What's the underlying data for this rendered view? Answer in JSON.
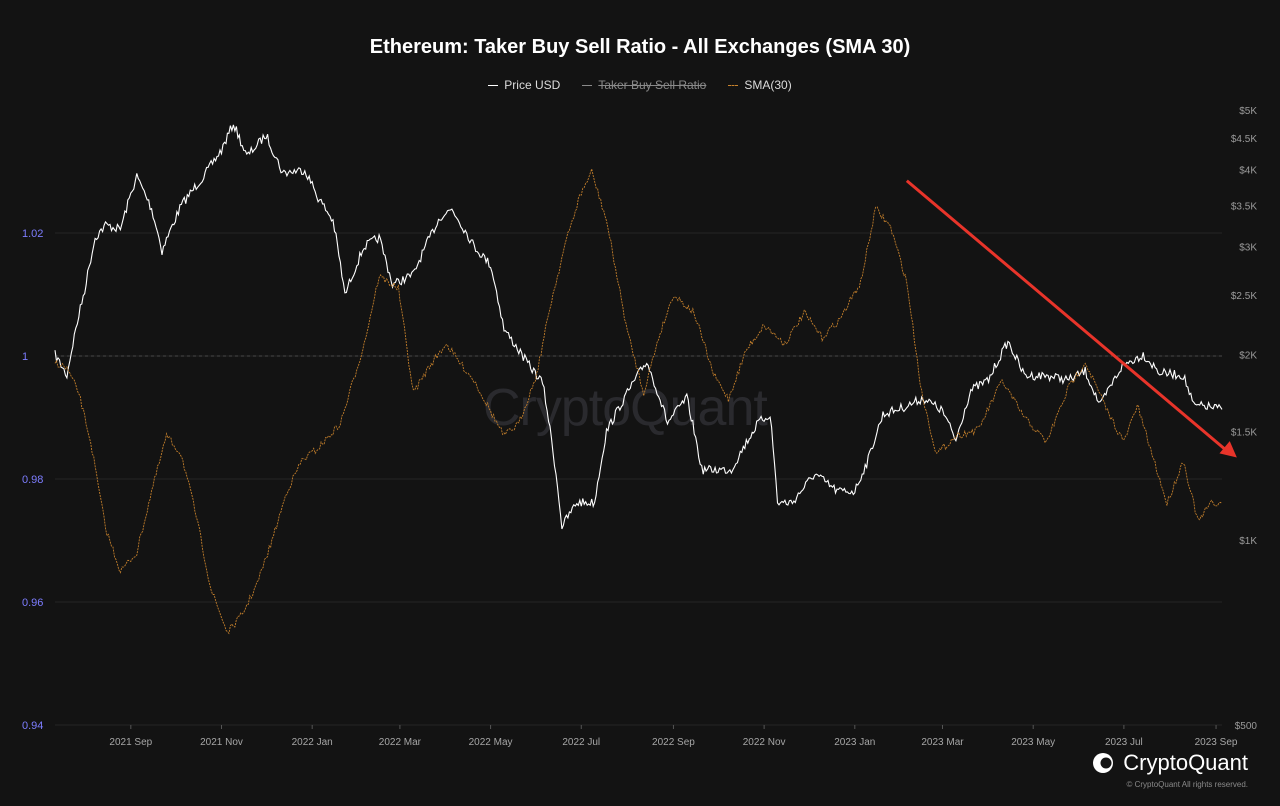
{
  "page": {
    "title": "Ethereum: Taker Buy Sell Ratio - All Exchanges (SMA 30)",
    "watermark": "CryptoQuant",
    "brand": "CryptoQuant",
    "copyright": "© CryptoQuant All rights reserved."
  },
  "legend": [
    {
      "label": "Price USD",
      "color": "#ffffff",
      "hidden": false
    },
    {
      "label": "Taker Buy Sell Ratio",
      "color": "#8a8a8a",
      "hidden": true
    },
    {
      "label": "SMA(30)",
      "color": "#c9832c",
      "hidden": false
    }
  ],
  "chart_data": {
    "type": "line",
    "title": "Ethereum: Taker Buy Sell Ratio - All Exchanges (SMA 30)",
    "xlabel": "",
    "ylabel": "",
    "x_ticks": [
      "2021 Sep",
      "2021 Nov",
      "2022 Jan",
      "2022 Mar",
      "2022 May",
      "2022 Jul",
      "2022 Sep",
      "2022 Nov",
      "2023 Jan",
      "2023 Mar",
      "2023 May",
      "2023 Jul",
      "2023 Sep"
    ],
    "x_range": [
      "2021-07-12",
      "2023-09-05"
    ],
    "y_left": {
      "ticks": [
        "1.02",
        "1",
        "0.98",
        "0.96",
        "0.94"
      ],
      "values": [
        1.02,
        1.0,
        0.98,
        0.96,
        0.94
      ],
      "range": [
        0.94,
        1.04
      ],
      "reference_line": 1.0
    },
    "y_right": {
      "ticks": [
        "$5K",
        "$4.5K",
        "$4K",
        "$3.5K",
        "$3K",
        "$2.5K",
        "$2K",
        "$1.5K",
        "$1K",
        "$500"
      ],
      "values": [
        5000,
        4500,
        4000,
        3500,
        3000,
        2500,
        2000,
        1500,
        1000,
        500
      ],
      "range": [
        500,
        5000
      ],
      "scale": "log"
    },
    "series": [
      {
        "name": "Price USD",
        "axis": "right",
        "color": "#ffffff",
        "points": [
          [
            "2021-07-12",
            2000
          ],
          [
            "2021-07-20",
            1850
          ],
          [
            "2021-08-01",
            2550
          ],
          [
            "2021-08-08",
            3100
          ],
          [
            "2021-08-15",
            3250
          ],
          [
            "2021-08-25",
            3200
          ],
          [
            "2021-09-05",
            3900
          ],
          [
            "2021-09-15",
            3450
          ],
          [
            "2021-09-22",
            2950
          ],
          [
            "2021-10-05",
            3500
          ],
          [
            "2021-10-20",
            3900
          ],
          [
            "2021-11-01",
            4300
          ],
          [
            "2021-11-09",
            4750
          ],
          [
            "2021-11-18",
            4200
          ],
          [
            "2021-12-01",
            4550
          ],
          [
            "2021-12-12",
            3950
          ],
          [
            "2021-12-27",
            4000
          ],
          [
            "2022-01-05",
            3600
          ],
          [
            "2022-01-15",
            3300
          ],
          [
            "2022-01-23",
            2500
          ],
          [
            "2022-02-05",
            3000
          ],
          [
            "2022-02-15",
            3100
          ],
          [
            "2022-02-24",
            2600
          ],
          [
            "2022-03-10",
            2700
          ],
          [
            "2022-03-28",
            3350
          ],
          [
            "2022-04-05",
            3450
          ],
          [
            "2022-04-20",
            3000
          ],
          [
            "2022-05-01",
            2800
          ],
          [
            "2022-05-10",
            2200
          ],
          [
            "2022-05-25",
            1950
          ],
          [
            "2022-06-05",
            1800
          ],
          [
            "2022-06-18",
            1050
          ],
          [
            "2022-06-28",
            1150
          ],
          [
            "2022-07-10",
            1150
          ],
          [
            "2022-07-18",
            1500
          ],
          [
            "2022-07-30",
            1700
          ],
          [
            "2022-08-14",
            1950
          ],
          [
            "2022-08-28",
            1550
          ],
          [
            "2022-09-10",
            1700
          ],
          [
            "2022-09-20",
            1300
          ],
          [
            "2022-10-10",
            1300
          ],
          [
            "2022-10-28",
            1550
          ],
          [
            "2022-11-05",
            1600
          ],
          [
            "2022-11-10",
            1150
          ],
          [
            "2022-11-20",
            1150
          ],
          [
            "2022-12-05",
            1280
          ],
          [
            "2022-12-20",
            1200
          ],
          [
            "2023-01-01",
            1200
          ],
          [
            "2023-01-10",
            1350
          ],
          [
            "2023-01-20",
            1600
          ],
          [
            "2023-02-05",
            1650
          ],
          [
            "2023-02-16",
            1700
          ],
          [
            "2023-03-01",
            1620
          ],
          [
            "2023-03-10",
            1450
          ],
          [
            "2023-03-20",
            1750
          ],
          [
            "2023-04-01",
            1820
          ],
          [
            "2023-04-14",
            2100
          ],
          [
            "2023-04-25",
            1850
          ],
          [
            "2023-05-10",
            1850
          ],
          [
            "2023-05-25",
            1820
          ],
          [
            "2023-06-05",
            1880
          ],
          [
            "2023-06-15",
            1650
          ],
          [
            "2023-06-30",
            1920
          ],
          [
            "2023-07-14",
            2000
          ],
          [
            "2023-07-25",
            1870
          ],
          [
            "2023-08-10",
            1850
          ],
          [
            "2023-08-17",
            1650
          ],
          [
            "2023-08-25",
            1650
          ],
          [
            "2023-09-05",
            1630
          ]
        ]
      },
      {
        "name": "SMA(30)",
        "axis": "left",
        "color": "#c9832c",
        "points": [
          [
            "2021-07-12",
            0.999
          ],
          [
            "2021-07-20",
            0.998
          ],
          [
            "2021-07-28",
            0.994
          ],
          [
            "2021-08-05",
            0.986
          ],
          [
            "2021-08-15",
            0.972
          ],
          [
            "2021-08-25",
            0.965
          ],
          [
            "2021-09-05",
            0.968
          ],
          [
            "2021-09-15",
            0.978
          ],
          [
            "2021-09-25",
            0.987
          ],
          [
            "2021-10-05",
            0.984
          ],
          [
            "2021-10-15",
            0.974
          ],
          [
            "2021-10-25",
            0.962
          ],
          [
            "2021-11-05",
            0.955
          ],
          [
            "2021-11-15",
            0.958
          ],
          [
            "2021-11-25",
            0.963
          ],
          [
            "2021-12-05",
            0.97
          ],
          [
            "2021-12-15",
            0.978
          ],
          [
            "2021-12-25",
            0.983
          ],
          [
            "2022-01-05",
            0.985
          ],
          [
            "2022-01-20",
            0.989
          ],
          [
            "2022-02-05",
            1.002
          ],
          [
            "2022-02-15",
            1.013
          ],
          [
            "2022-02-28",
            1.011
          ],
          [
            "2022-03-10",
            0.994
          ],
          [
            "2022-03-20",
            0.998
          ],
          [
            "2022-04-01",
            1.002
          ],
          [
            "2022-04-10",
            0.999
          ],
          [
            "2022-04-20",
            0.996
          ],
          [
            "2022-05-01",
            0.991
          ],
          [
            "2022-05-10",
            0.987
          ],
          [
            "2022-05-20",
            0.989
          ],
          [
            "2022-06-01",
            0.997
          ],
          [
            "2022-06-10",
            1.008
          ],
          [
            "2022-06-20",
            1.018
          ],
          [
            "2022-06-30",
            1.026
          ],
          [
            "2022-07-08",
            1.03
          ],
          [
            "2022-07-18",
            1.022
          ],
          [
            "2022-08-01",
            1.004
          ],
          [
            "2022-08-12",
            0.994
          ],
          [
            "2022-08-22",
            1.003
          ],
          [
            "2022-09-01",
            1.01
          ],
          [
            "2022-09-15",
            1.007
          ],
          [
            "2022-09-28",
            0.997
          ],
          [
            "2022-10-08",
            0.993
          ],
          [
            "2022-10-20",
            1.001
          ],
          [
            "2022-11-01",
            1.005
          ],
          [
            "2022-11-15",
            1.002
          ],
          [
            "2022-11-28",
            1.007
          ],
          [
            "2022-12-10",
            1.003
          ],
          [
            "2022-12-22",
            1.006
          ],
          [
            "2023-01-05",
            1.012
          ],
          [
            "2023-01-15",
            1.024
          ],
          [
            "2023-01-25",
            1.021
          ],
          [
            "2023-02-05",
            1.012
          ],
          [
            "2023-02-15",
            0.994
          ],
          [
            "2023-02-25",
            0.984
          ],
          [
            "2023-03-10",
            0.987
          ],
          [
            "2023-03-25",
            0.988
          ],
          [
            "2023-04-10",
            0.996
          ],
          [
            "2023-04-25",
            0.99
          ],
          [
            "2023-05-10",
            0.986
          ],
          [
            "2023-05-25",
            0.995
          ],
          [
            "2023-06-05",
            0.999
          ],
          [
            "2023-06-20",
            0.991
          ],
          [
            "2023-07-01",
            0.986
          ],
          [
            "2023-07-10",
            0.992
          ],
          [
            "2023-07-20",
            0.984
          ],
          [
            "2023-07-30",
            0.976
          ],
          [
            "2023-08-10",
            0.983
          ],
          [
            "2023-08-20",
            0.973
          ],
          [
            "2023-08-28",
            0.976
          ],
          [
            "2023-09-05",
            0.976
          ]
        ]
      }
    ],
    "annotations": [
      {
        "type": "arrow",
        "color": "#e8342a",
        "from": [
          "2023-02-05",
          1.0285
        ],
        "to": [
          "2023-09-15",
          0.9835
        ]
      }
    ]
  }
}
